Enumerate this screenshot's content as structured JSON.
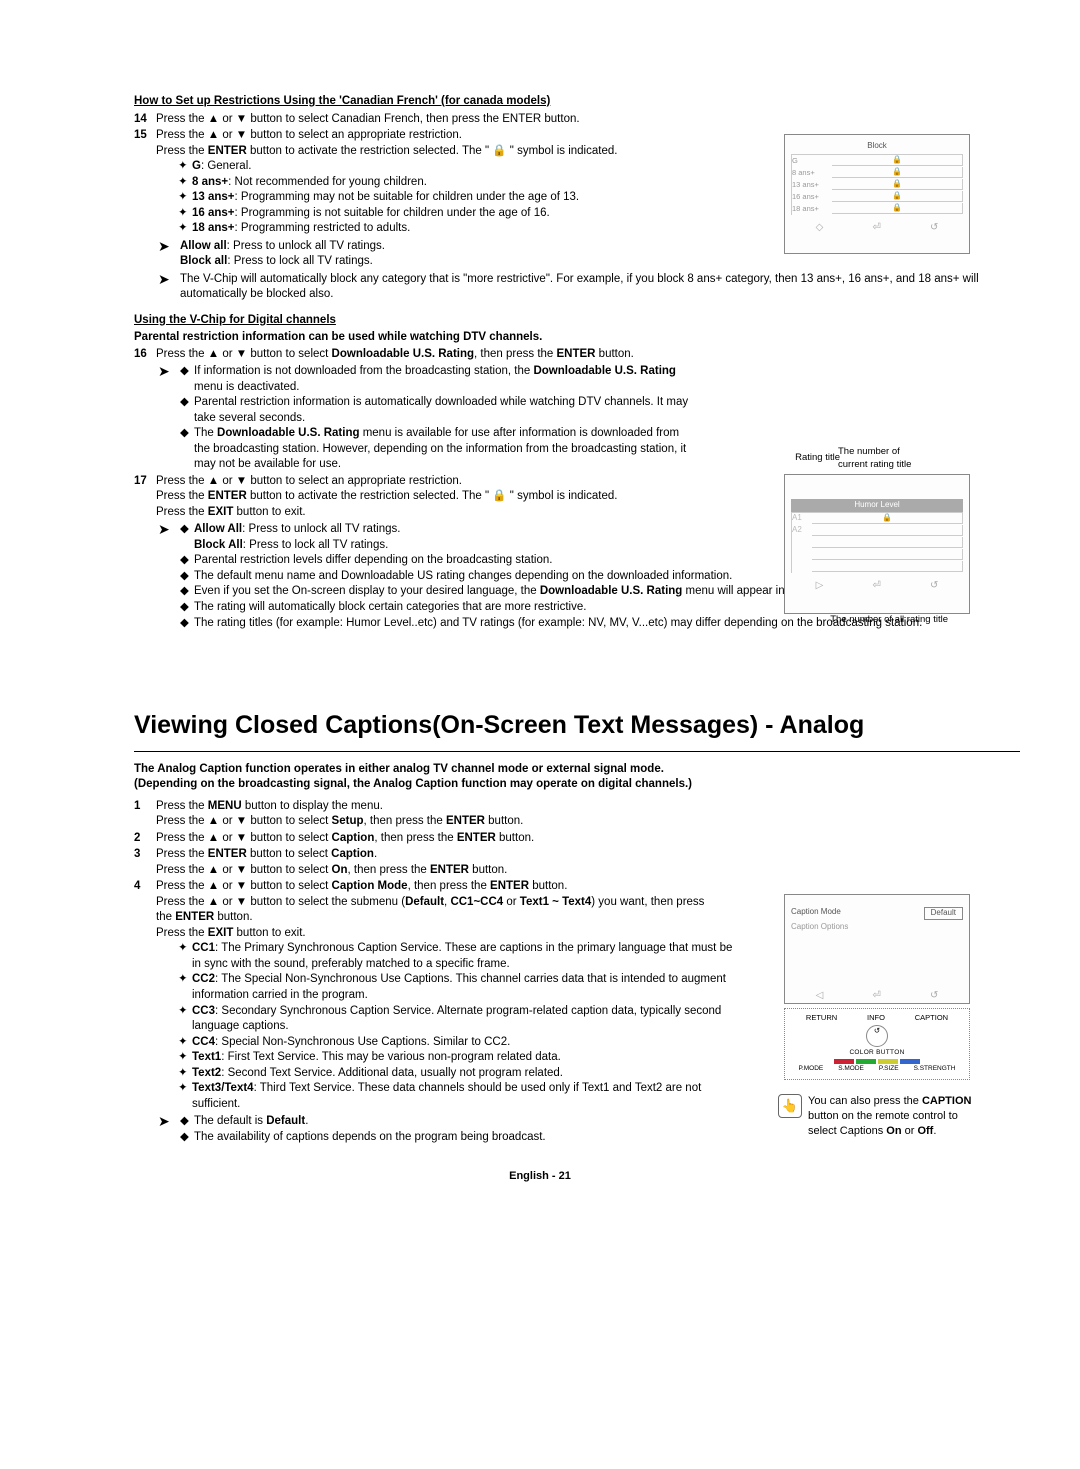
{
  "section1": {
    "heading": "How to Set up Restrictions Using the 'Canadian French' (for canada models)",
    "step14": "Press the ▲ or ▼ button to select Canadian French, then press the ENTER button.",
    "step15a": "Press the ▲ or ▼ button to select an appropriate restriction.",
    "step15b_pre": "Press the ",
    "step15b_b": "ENTER",
    "step15b_mid": " button to activate the restriction selected. The \" ",
    "step15b_lock": "🔒",
    "step15b_post": " \" symbol is indicated.",
    "defs": [
      {
        "b": "G",
        "t": ": General."
      },
      {
        "b": "8 ans+",
        "t": ": Not recommended for young children."
      },
      {
        "b": "13 ans+",
        "t": ": Programming may not be suitable for children under the age of 13."
      },
      {
        "b": "16 ans+",
        "t": ": Programming is not suitable for children under the age of 16."
      },
      {
        "b": "18 ans+",
        "t": ": Programming restricted to adults."
      }
    ],
    "arrow1a_b": "Allow all",
    "arrow1a_t": ": Press to unlock all TV ratings.",
    "arrow1b_b": "Block all",
    "arrow1b_t": ": Press to lock all TV ratings.",
    "arrow2": "The V-Chip will automatically block any category that is \"more restrictive\". For example, if you block 8 ans+ category, then 13 ans+, 16 ans+, and 18 ans+ will automatically be blocked also."
  },
  "screenbox1": {
    "title": "Block",
    "rows": [
      "G",
      "8 ans+",
      "13 ans+",
      "16 ans+",
      "18 ans+"
    ],
    "lock": "🔒",
    "nav": [
      "◇",
      "⏎",
      "↺"
    ]
  },
  "section2": {
    "heading": "Using the V-Chip for Digital channels",
    "sub": "Parental restriction information can be used while watching DTV channels.",
    "step16_pre": "Press the ▲ or ▼ button to select ",
    "step16_b": "Downloadable U.S. Rating",
    "step16_mid": ", then press the ",
    "step16_b2": "ENTER",
    "step16_post": " button.",
    "a1": "If information is not downloaded from the broadcasting station, the ",
    "a1b": "Downloadable U.S. Rating",
    "a1t": " menu is deactivated.",
    "a2": "Parental restriction information is automatically downloaded while watching DTV channels. It may take several seconds.",
    "a3_pre": "The ",
    "a3_b": "Downloadable U.S. Rating",
    "a3_post": " menu is available for use after information is downloaded from the broadcasting station. However, depending on the information from the broadcasting station, it may not be available for use.",
    "step17a": "Press the ▲ or ▼ button to select an appropriate restriction.",
    "step17b_pre": "Press the ",
    "step17b_b": "ENTER",
    "step17b_mid": " button to activate the restriction selected. The \" ",
    "step17b_lock": "🔒",
    "step17b_post": " \" symbol is indicated.",
    "step17c_pre": "Press the ",
    "step17c_b": "EXIT",
    "step17c_post": " button to exit.",
    "b1b": "Allow All",
    "b1t": ": Press to unlock all TV ratings.",
    "b1b2": "Block All",
    "b1t2": ": Press to lock all TV ratings.",
    "b2": "Parental restriction levels differ depending on the broadcasting station.",
    "b3": "The default menu name and Downloadable US rating changes depending on the downloaded information.",
    "b4_pre": "Even if you set the On-screen display to your desired language, the ",
    "b4_b": "Downloadable U.S. Rating",
    "b4_post": " menu will appear in English only.",
    "b5": "The rating will automatically block certain categories that are more restrictive.",
    "b6": "The rating titles (for example: Humor Level..etc) and TV ratings (for example: NV, MV, V...etc) may differ depending on the broadcasting station."
  },
  "screenbox2": {
    "annot1": "Rating title",
    "annot2": "The number of current rating title",
    "annot3": "The number of all rating title",
    "hdr": "Humor Level",
    "col": [
      "A1",
      "A2"
    ],
    "lock": "🔒",
    "nav": [
      "▷",
      "⏎",
      "↺"
    ]
  },
  "maintitle": "Viewing Closed Captions(On-Screen Text Messages) - Analog",
  "section3": {
    "intro": "The Analog Caption function operates in either analog TV channel mode or external signal mode. (Depending on the broadcasting signal, the Analog Caption function may operate on digital channels.)",
    "s1a_pre": "Press the ",
    "s1a_b": "MENU",
    "s1a_post": " button to display the menu.",
    "s1b_pre": "Press the ▲ or ▼ button to select ",
    "s1b_b": "Setup",
    "s1b_mid": ", then press the ",
    "s1b_b2": "ENTER",
    "s1b_post": " button.",
    "s2_pre": "Press the ▲ or ▼ button to select ",
    "s2_b": "Caption",
    "s2_mid": ", then press the ",
    "s2_b2": "ENTER",
    "s2_post": " button.",
    "s3a_pre": "Press the ",
    "s3a_b": "ENTER",
    "s3a_mid": " button to select ",
    "s3a_b2": "Caption",
    "s3a_post": ".",
    "s3b_pre": "Press the ▲ or ▼ button to select ",
    "s3b_b": "On",
    "s3b_mid": ", then press the ",
    "s3b_b2": "ENTER",
    "s3b_post": " button.",
    "s4a_pre": "Press the ▲ or ▼ button to select ",
    "s4a_b": "Caption Mode",
    "s4a_mid": ", then press the ",
    "s4a_b2": "ENTER",
    "s4a_post": " button.",
    "s4b_pre": "Press the ▲ or ▼ button to select the submenu (",
    "s4b_b": "Default",
    "s4b_mid1": ", ",
    "s4b_b2": "CC1~CC4",
    "s4b_mid2": " or ",
    "s4b_b3": "Text1 ~ Text4",
    "s4b_post": ") you want, then press the ",
    "s4b_b4": "ENTER",
    "s4b_post2": " button.",
    "s4c_pre": "Press the ",
    "s4c_b": "EXIT",
    "s4c_post": " button to exit.",
    "ccs": [
      {
        "b": "CC1",
        "t": ": The Primary Synchronous Caption Service. These are captions in the primary language that must be in sync with the sound, preferably matched to a specific frame."
      },
      {
        "b": "CC2",
        "t": ": The Special Non-Synchronous Use Captions. This channel carries data that is intended to augment information carried in the program."
      },
      {
        "b": "CC3",
        "t": ": Secondary Synchronous Caption Service. Alternate program-related caption data, typically second language captions."
      },
      {
        "b": "CC4",
        "t": ": Special Non-Synchronous Use Captions. Similar to CC2."
      },
      {
        "b": "Text1",
        "t": ": First Text Service. This may be various non-program related data."
      },
      {
        "b": "Text2",
        "t": ": Second Text Service. Additional data, usually not program related."
      },
      {
        "b": "Text3/Text4",
        "t": ": Third Text Service. These data channels should be used only if Text1 and Text2 are not sufficient."
      }
    ],
    "n1_pre": "The default is ",
    "n1_b": "Default",
    "n1_post": ".",
    "n2": "The availability of captions depends on the program being broadcast."
  },
  "screenbox3": {
    "cm": "Caption Mode",
    "def": "Default",
    "co": "Caption Options",
    "nav": [
      "◁",
      "⏎",
      "↺"
    ]
  },
  "remote": {
    "top": [
      "RETURN",
      "INFO",
      "CAPTION"
    ],
    "cb": "COLOR BUTTON",
    "colors": [
      "#c23",
      "#2a3",
      "#cc3",
      "#36c"
    ],
    "bot": [
      "P.MODE",
      "S.MODE",
      "P.SIZE",
      "S.STRENGTH"
    ],
    "circ": "↺"
  },
  "tip": {
    "icon": "👆",
    "pre": "You can also press the ",
    "b": "CAPTION",
    "mid": " button on the remote control to select Captions ",
    "b2": "On",
    "or": " or ",
    "b3": "Off",
    "post": "."
  },
  "footer": "English - 21"
}
